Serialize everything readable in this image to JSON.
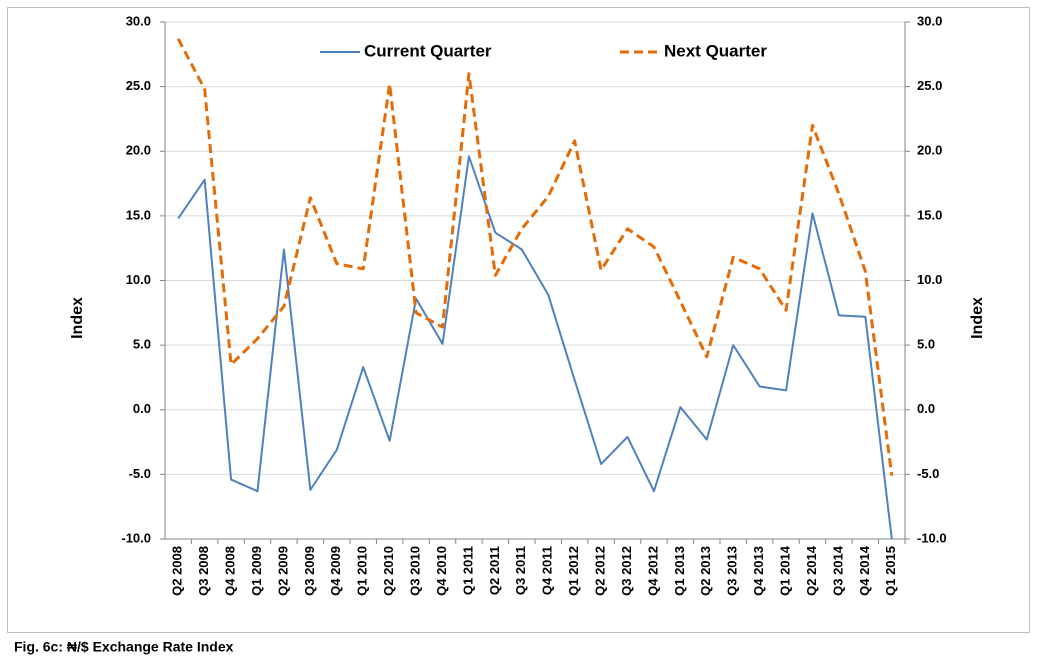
{
  "chart_data": {
    "type": "line",
    "ylabel": "Index",
    "y2label": "Index",
    "caption": "Fig. 6c: ₦/$ Exchange Rate Index",
    "categories": [
      "Q2 2008",
      "Q3 2008",
      "Q4 2008",
      "Q1 2009",
      "Q2 2009",
      "Q3 2009",
      "Q4 2009",
      "Q1 2010",
      "Q2 2010",
      "Q3 2010",
      "Q4 2010",
      "Q1 2011",
      "Q2 2011",
      "Q3 2011",
      "Q4 2011",
      "Q1 2012",
      "Q2 2012",
      "Q3 2012",
      "Q4 2012",
      "Q1 2013",
      "Q2 2013",
      "Q3 2013",
      "Q4 2013",
      "Q1 2014",
      "Q2 2014",
      "Q3 2014",
      "Q4 2014",
      "Q1 2015"
    ],
    "series": [
      {
        "name": "Current Quarter",
        "color": "#4f81bd",
        "dashed": false,
        "values": [
          14.8,
          17.8,
          -5.4,
          -6.3,
          12.4,
          -6.2,
          -3.1,
          3.3,
          -2.4,
          8.6,
          5.1,
          19.6,
          13.7,
          12.4,
          8.9,
          2.3,
          -4.2,
          -2.1,
          -6.3,
          0.2,
          -2.3,
          5.0,
          1.8,
          1.5,
          15.2,
          7.3,
          7.2,
          -10.0
        ]
      },
      {
        "name": "Next Quarter",
        "color": "#e36c09",
        "dashed": true,
        "axis": "y2",
        "values": [
          28.7,
          24.8,
          3.5,
          5.5,
          8.0,
          16.4,
          11.3,
          10.9,
          25.2,
          7.5,
          6.4,
          26.0,
          10.4,
          14.0,
          16.5,
          20.8,
          10.8,
          14.0,
          12.6,
          8.4,
          4.1,
          11.8,
          10.9,
          7.7,
          22.0,
          16.7,
          10.7,
          -5.1
        ]
      }
    ],
    "ylim": [
      -10,
      30
    ],
    "yticks": [
      {
        "value": -10,
        "label": "-10.0"
      },
      {
        "value": -5,
        "label": "-5.0"
      },
      {
        "value": 0,
        "label": "0.0"
      },
      {
        "value": 5,
        "label": "5.0"
      },
      {
        "value": 10,
        "label": "10.0"
      },
      {
        "value": 15,
        "label": "15.0"
      },
      {
        "value": 20,
        "label": "20.0"
      },
      {
        "value": 25,
        "label": "25.0"
      },
      {
        "value": 30,
        "label": "30.0"
      }
    ],
    "y2lim": [
      -10,
      30
    ],
    "y2ticks": [
      {
        "value": -10,
        "label": "-10.0"
      },
      {
        "value": -5,
        "label": "-5.0"
      },
      {
        "value": 0,
        "label": "0.0"
      },
      {
        "value": 5,
        "label": "5.0"
      },
      {
        "value": 10,
        "label": "10.0"
      },
      {
        "value": 15,
        "label": "15.0"
      },
      {
        "value": 20,
        "label": "20.0"
      },
      {
        "value": 25,
        "label": "25.0"
      },
      {
        "value": 30,
        "label": "30.0"
      }
    ],
    "grid": true,
    "legend": "top"
  }
}
